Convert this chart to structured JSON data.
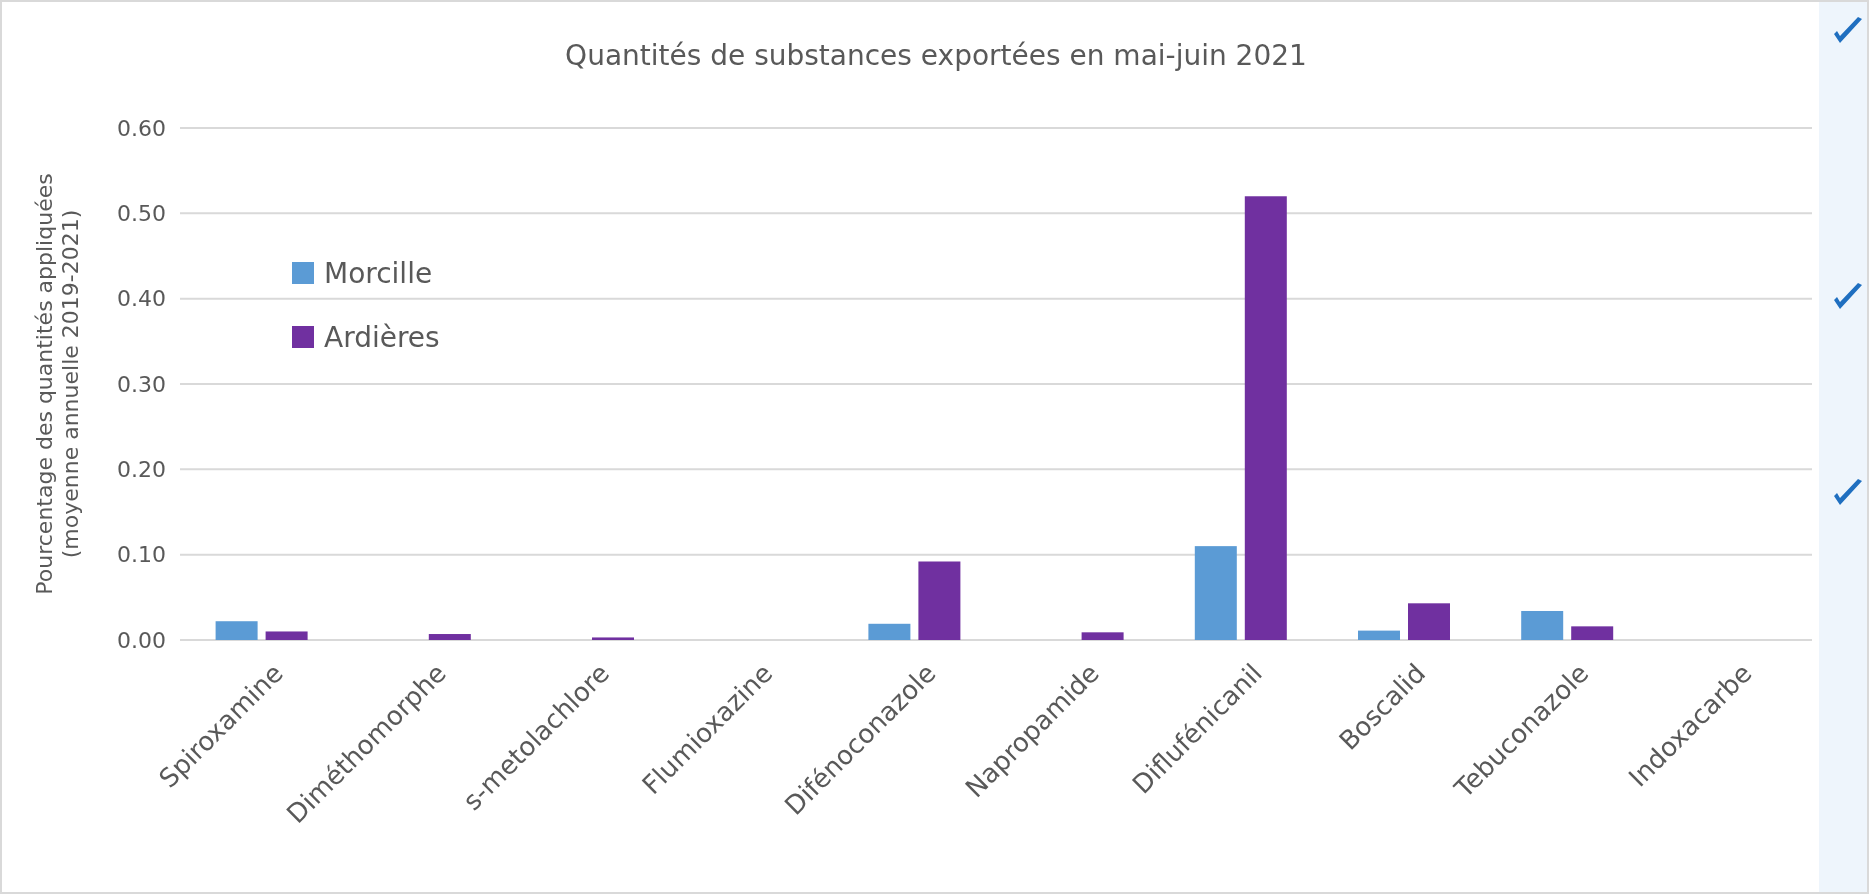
{
  "chart_data": {
    "type": "bar",
    "title": "Quantités de substances exportées en mai-juin 2021",
    "ylabel": "Pourcentage des quantités appliquées (moyenne annuelle  2019-2021)",
    "categories": [
      "Spiroxamine",
      "Diméthomorphe",
      "s-metolachlore",
      "Flumioxazine",
      "Difénoconazole",
      "Napropamide",
      "Diflufénicanil",
      "Boscalid",
      "Tebuconazole",
      "Indoxacarbe"
    ],
    "series": [
      {
        "name": "Morcille",
        "color": "#5b9bd5",
        "values": [
          0.022,
          0,
          0,
          0,
          0.019,
          0,
          0.11,
          0.011,
          0.034,
          0
        ]
      },
      {
        "name": "Ardières",
        "color": "#7030a0",
        "values": [
          0.01,
          0.007,
          0.003,
          0,
          0.092,
          0.009,
          0.52,
          0.043,
          0.016,
          0
        ]
      }
    ],
    "ylim": [
      0,
      0.6
    ],
    "yticks": [
      {
        "value": 0,
        "label": "0.00"
      },
      {
        "value": 0.1,
        "label": "0.10"
      },
      {
        "value": 0.2,
        "label": "0.20"
      },
      {
        "value": 0.3,
        "label": "0.30"
      },
      {
        "value": 0.4,
        "label": "0.40"
      },
      {
        "value": 0.5,
        "label": "0.50"
      },
      {
        "value": 0.6,
        "label": "0.60"
      }
    ],
    "grid": "y",
    "legend": "left"
  }
}
